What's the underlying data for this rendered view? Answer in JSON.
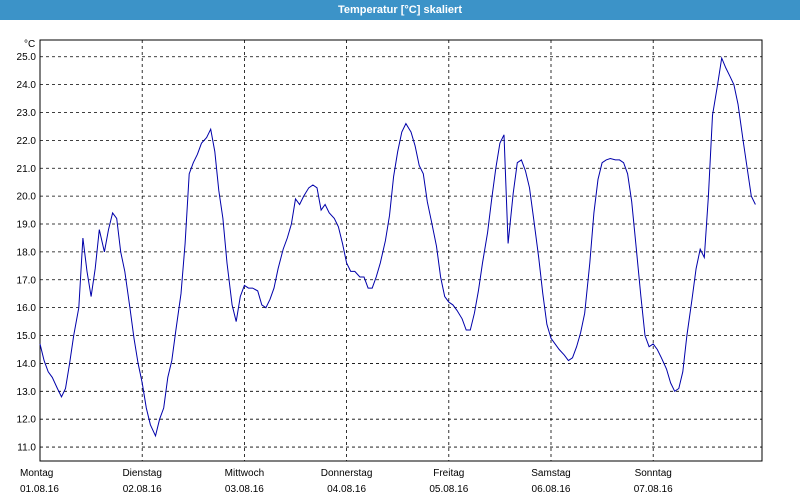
{
  "window": {
    "title": "Temperatur [°C] skaliert"
  },
  "colors": {
    "titlebar": "#3c93c8",
    "series": "#0000aa",
    "grid": "#000000"
  },
  "chart_data": {
    "type": "line",
    "title": "Temperatur [°C] skaliert",
    "ylabel": "°C",
    "xlabel": "",
    "ylim": [
      10.5,
      25.6
    ],
    "y_ticks": [
      "11.0",
      "12.0",
      "13.0",
      "14.0",
      "15.0",
      "16.0",
      "17.0",
      "18.0",
      "19.0",
      "20.0",
      "21.0",
      "22.0",
      "23.0",
      "24.0",
      "25.0"
    ],
    "x_range_days": [
      0,
      7.1
    ],
    "x_ticks": [
      {
        "day": "Montag",
        "date": "01.08.16"
      },
      {
        "day": "Dienstag",
        "date": "02.08.16"
      },
      {
        "day": "Mittwoch",
        "date": "03.08.16"
      },
      {
        "day": "Donnerstag",
        "date": "04.08.16"
      },
      {
        "day": "Freitag",
        "date": "05.08.16"
      },
      {
        "day": "Samstag",
        "date": "06.08.16"
      },
      {
        "day": "Sonntag",
        "date": "07.08.16"
      }
    ],
    "grid": true,
    "series": [
      {
        "points": [
          [
            0.0,
            14.7
          ],
          [
            0.04,
            14.1
          ],
          [
            0.08,
            13.7
          ],
          [
            0.12,
            13.5
          ],
          [
            0.17,
            13.1
          ],
          [
            0.21,
            12.8
          ],
          [
            0.25,
            13.1
          ],
          [
            0.29,
            14.0
          ],
          [
            0.33,
            15.0
          ],
          [
            0.38,
            16.0
          ],
          [
            0.42,
            18.5
          ],
          [
            0.46,
            17.3
          ],
          [
            0.5,
            16.4
          ],
          [
            0.54,
            17.4
          ],
          [
            0.58,
            18.8
          ],
          [
            0.63,
            18.0
          ],
          [
            0.67,
            18.8
          ],
          [
            0.71,
            19.4
          ],
          [
            0.75,
            19.2
          ],
          [
            0.79,
            18.0
          ],
          [
            0.83,
            17.3
          ],
          [
            0.88,
            16.0
          ],
          [
            0.92,
            14.9
          ],
          [
            0.96,
            14.0
          ],
          [
            1.0,
            13.3
          ],
          [
            1.04,
            12.4
          ],
          [
            1.08,
            11.8
          ],
          [
            1.13,
            11.4
          ],
          [
            1.17,
            12.0
          ],
          [
            1.21,
            12.4
          ],
          [
            1.25,
            13.5
          ],
          [
            1.29,
            14.1
          ],
          [
            1.33,
            15.2
          ],
          [
            1.38,
            16.5
          ],
          [
            1.42,
            18.3
          ],
          [
            1.46,
            20.8
          ],
          [
            1.5,
            21.2
          ],
          [
            1.54,
            21.5
          ],
          [
            1.58,
            21.9
          ],
          [
            1.63,
            22.1
          ],
          [
            1.67,
            22.4
          ],
          [
            1.71,
            21.6
          ],
          [
            1.75,
            20.2
          ],
          [
            1.79,
            19.2
          ],
          [
            1.83,
            17.6
          ],
          [
            1.88,
            16.1
          ],
          [
            1.92,
            15.5
          ],
          [
            1.96,
            16.4
          ],
          [
            2.0,
            16.8
          ],
          [
            2.04,
            16.7
          ],
          [
            2.08,
            16.7
          ],
          [
            2.13,
            16.6
          ],
          [
            2.17,
            16.1
          ],
          [
            2.21,
            16.0
          ],
          [
            2.25,
            16.3
          ],
          [
            2.29,
            16.7
          ],
          [
            2.33,
            17.4
          ],
          [
            2.38,
            18.1
          ],
          [
            2.42,
            18.5
          ],
          [
            2.46,
            19.0
          ],
          [
            2.5,
            19.9
          ],
          [
            2.54,
            19.7
          ],
          [
            2.58,
            20.0
          ],
          [
            2.63,
            20.3
          ],
          [
            2.67,
            20.4
          ],
          [
            2.71,
            20.3
          ],
          [
            2.75,
            19.5
          ],
          [
            2.79,
            19.7
          ],
          [
            2.83,
            19.4
          ],
          [
            2.88,
            19.2
          ],
          [
            2.92,
            18.9
          ],
          [
            2.96,
            18.3
          ],
          [
            3.0,
            17.6
          ],
          [
            3.04,
            17.3
          ],
          [
            3.08,
            17.3
          ],
          [
            3.13,
            17.1
          ],
          [
            3.17,
            17.1
          ],
          [
            3.21,
            16.7
          ],
          [
            3.25,
            16.7
          ],
          [
            3.29,
            17.1
          ],
          [
            3.33,
            17.6
          ],
          [
            3.38,
            18.4
          ],
          [
            3.42,
            19.3
          ],
          [
            3.46,
            20.7
          ],
          [
            3.5,
            21.6
          ],
          [
            3.54,
            22.3
          ],
          [
            3.58,
            22.6
          ],
          [
            3.63,
            22.3
          ],
          [
            3.67,
            21.8
          ],
          [
            3.71,
            21.1
          ],
          [
            3.75,
            20.8
          ],
          [
            3.79,
            19.8
          ],
          [
            3.83,
            19.1
          ],
          [
            3.88,
            18.2
          ],
          [
            3.92,
            17.1
          ],
          [
            3.96,
            16.4
          ],
          [
            4.0,
            16.2
          ],
          [
            4.04,
            16.1
          ],
          [
            4.08,
            15.9
          ],
          [
            4.13,
            15.6
          ],
          [
            4.17,
            15.2
          ],
          [
            4.21,
            15.2
          ],
          [
            4.25,
            15.8
          ],
          [
            4.29,
            16.6
          ],
          [
            4.33,
            17.6
          ],
          [
            4.38,
            18.7
          ],
          [
            4.42,
            19.9
          ],
          [
            4.46,
            21.0
          ],
          [
            4.5,
            21.9
          ],
          [
            4.54,
            22.2
          ],
          [
            4.58,
            18.3
          ],
          [
            4.63,
            20.1
          ],
          [
            4.67,
            21.2
          ],
          [
            4.71,
            21.3
          ],
          [
            4.75,
            20.9
          ],
          [
            4.79,
            20.3
          ],
          [
            4.83,
            19.2
          ],
          [
            4.88,
            17.8
          ],
          [
            4.92,
            16.5
          ],
          [
            4.96,
            15.4
          ],
          [
            5.0,
            14.9
          ],
          [
            5.04,
            14.7
          ],
          [
            5.08,
            14.5
          ],
          [
            5.13,
            14.3
          ],
          [
            5.17,
            14.1
          ],
          [
            5.21,
            14.2
          ],
          [
            5.25,
            14.6
          ],
          [
            5.29,
            15.1
          ],
          [
            5.33,
            15.8
          ],
          [
            5.38,
            17.6
          ],
          [
            5.42,
            19.4
          ],
          [
            5.46,
            20.6
          ],
          [
            5.5,
            21.2
          ],
          [
            5.54,
            21.3
          ],
          [
            5.58,
            21.35
          ],
          [
            5.63,
            21.3
          ],
          [
            5.67,
            21.3
          ],
          [
            5.71,
            21.2
          ],
          [
            5.75,
            20.8
          ],
          [
            5.79,
            19.8
          ],
          [
            5.83,
            18.3
          ],
          [
            5.88,
            16.4
          ],
          [
            5.92,
            15.0
          ],
          [
            5.96,
            14.6
          ],
          [
            6.0,
            14.7
          ],
          [
            6.04,
            14.5
          ],
          [
            6.08,
            14.2
          ],
          [
            6.13,
            13.8
          ],
          [
            6.17,
            13.3
          ],
          [
            6.21,
            13.0
          ],
          [
            6.25,
            13.1
          ],
          [
            6.29,
            13.7
          ],
          [
            6.33,
            15.0
          ],
          [
            6.38,
            16.3
          ],
          [
            6.42,
            17.4
          ],
          [
            6.46,
            18.1
          ],
          [
            6.5,
            17.8
          ],
          [
            6.54,
            20.0
          ],
          [
            6.58,
            22.9
          ],
          [
            6.63,
            24.0
          ],
          [
            6.67,
            24.95
          ],
          [
            6.71,
            24.6
          ],
          [
            6.75,
            24.3
          ],
          [
            6.79,
            24.0
          ],
          [
            6.83,
            23.3
          ],
          [
            6.88,
            22.0
          ],
          [
            6.92,
            21.0
          ],
          [
            6.96,
            20.0
          ],
          [
            7.0,
            19.7
          ]
        ]
      }
    ]
  }
}
